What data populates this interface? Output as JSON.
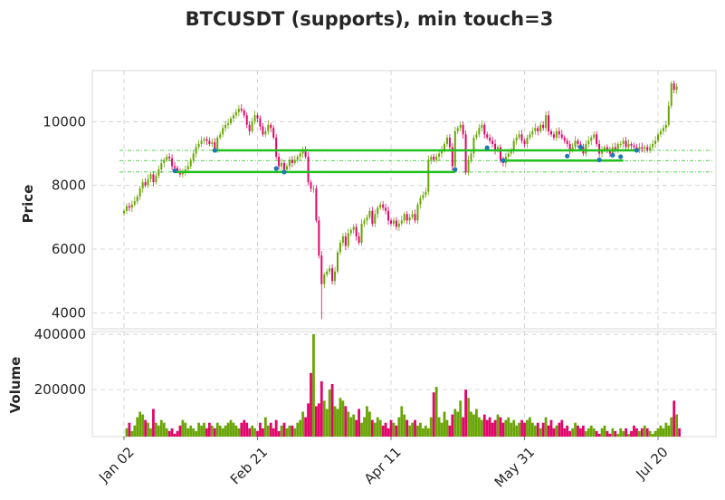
{
  "chart_data": {
    "type": "candlestick",
    "title": "BTCUSDT (supports), min touch=3",
    "price_panel": {
      "ylabel": "Price",
      "ylim": [
        3500,
        11600
      ],
      "yticks": [
        4000,
        6000,
        8000,
        10000
      ]
    },
    "volume_panel": {
      "ylabel": "Volume",
      "ylim": [
        30000,
        410000
      ],
      "yticks": [
        200000,
        400000
      ]
    },
    "x_axis": {
      "start_date": "2020-01-02",
      "end_date": "2020-07-25",
      "tick_labels": [
        "Jan 02",
        "Feb 21",
        "Apr 11",
        "May 31",
        "Jul 20"
      ],
      "tick_days": [
        0,
        50,
        100,
        150,
        200
      ]
    },
    "colors": {
      "up": "#6aa508",
      "down": "#e0066a",
      "support_line": "#22c01e",
      "guide_line": "#22c01e",
      "touch_point": "#1f77b4",
      "grid": "#cccccc",
      "frame": "#e5e5e5"
    },
    "support_levels": [
      {
        "level": 8420,
        "from_day": 19,
        "to_day": 124
      },
      {
        "level": 9100,
        "from_day": 34,
        "to_day": 192
      },
      {
        "level": 8780,
        "from_day": 142,
        "to_day": 187
      }
    ],
    "guide_levels": [
      8420,
      8780,
      9100
    ],
    "touch_points": [
      {
        "day": 19,
        "price": 8460
      },
      {
        "day": 34,
        "price": 9100
      },
      {
        "day": 57,
        "price": 8530
      },
      {
        "day": 60,
        "price": 8420
      },
      {
        "day": 124,
        "price": 8500
      },
      {
        "day": 136,
        "price": 9180
      },
      {
        "day": 142,
        "price": 8780
      },
      {
        "day": 166,
        "price": 8920
      },
      {
        "day": 171,
        "price": 9200
      },
      {
        "day": 178,
        "price": 8800
      },
      {
        "day": 183,
        "price": 8950
      },
      {
        "day": 186,
        "price": 8900
      },
      {
        "day": 192,
        "price": 9100
      }
    ],
    "closes": [
      7200,
      7350,
      7300,
      7400,
      7500,
      7650,
      7900,
      8100,
      8000,
      8200,
      8350,
      8100,
      8300,
      8500,
      8700,
      8800,
      8900,
      8850,
      8600,
      8550,
      8450,
      8350,
      8420,
      8500,
      8600,
      8800,
      9000,
      9200,
      9300,
      9400,
      9450,
      9400,
      9300,
      9350,
      9150,
      9500,
      9600,
      9800,
      9900,
      9950,
      10100,
      10200,
      10300,
      10400,
      10350,
      10200,
      9900,
      9700,
      10000,
      10200,
      10100,
      9850,
      9600,
      9700,
      9900,
      9800,
      9500,
      8900,
      8600,
      8700,
      8500,
      8600,
      8800,
      8700,
      8800,
      8900,
      9000,
      9100,
      8900,
      8100,
      7900,
      7900,
      6900,
      5800,
      4900,
      5200,
      5300,
      5400,
      5000,
      5300,
      5900,
      6200,
      6400,
      6100,
      6500,
      6600,
      6700,
      6400,
      6200,
      6800,
      6900,
      7000,
      7200,
      6800,
      7100,
      7300,
      7400,
      7300,
      7200,
      6900,
      6800,
      6900,
      6700,
      6800,
      6900,
      7100,
      6900,
      7000,
      7100,
      6900,
      7400,
      7600,
      7700,
      7800,
      8800,
      8900,
      8800,
      8900,
      9000,
      9100,
      9300,
      9500,
      9200,
      8600,
      9700,
      9800,
      9900,
      9600,
      8400,
      8800,
      9000,
      9500,
      9600,
      9800,
      9900,
      9600,
      9500,
      9400,
      9300,
      9100,
      9200,
      8800,
      8700,
      8900,
      9000,
      9100,
      9400,
      9500,
      9600,
      9400,
      9300,
      9500,
      9600,
      9700,
      9800,
      9700,
      9900,
      9800,
      10200,
      9700,
      9600,
      9500,
      9700,
      9600,
      9500,
      9400,
      9300,
      9100,
      9200,
      9400,
      9300,
      9200,
      9000,
      9300,
      9400,
      9500,
      9600,
      9300,
      9000,
      9100,
      9200,
      9100,
      9000,
      9200,
      9100,
      9300,
      9300,
      9400,
      9200,
      9300,
      9250,
      9200,
      9100,
      9200,
      9150,
      9200,
      9100,
      9200,
      9300,
      9400,
      9600,
      9700,
      9800,
      9900,
      10500,
      11200,
      11000,
      11100
    ],
    "volumes": [
      30000,
      60000,
      80000,
      50000,
      70000,
      100000,
      120000,
      110000,
      90000,
      80000,
      60000,
      130000,
      80000,
      70000,
      90000,
      80000,
      60000,
      50000,
      60000,
      40000,
      50000,
      70000,
      90000,
      80000,
      60000,
      70000,
      60000,
      50000,
      80000,
      70000,
      80000,
      60000,
      80000,
      70000,
      60000,
      80000,
      70000,
      60000,
      70000,
      80000,
      90000,
      80000,
      70000,
      60000,
      80000,
      90000,
      80000,
      60000,
      70000,
      60000,
      50000,
      80000,
      60000,
      100000,
      70000,
      80000,
      60000,
      90000,
      50000,
      70000,
      80000,
      60000,
      70000,
      70000,
      60000,
      80000,
      90000,
      120000,
      100000,
      150000,
      260000,
      400000,
      140000,
      150000,
      230000,
      160000,
      130000,
      200000,
      220000,
      140000,
      130000,
      170000,
      160000,
      140000,
      120000,
      100000,
      110000,
      90000,
      130000,
      80000,
      100000,
      140000,
      120000,
      90000,
      80000,
      100000,
      90000,
      70000,
      80000,
      60000,
      90000,
      80000,
      70000,
      100000,
      140000,
      110000,
      90000,
      70000,
      80000,
      90000,
      70000,
      80000,
      60000,
      70000,
      60000,
      100000,
      190000,
      210000,
      100000,
      80000,
      120000,
      90000,
      70000,
      110000,
      130000,
      120000,
      160000,
      100000,
      200000,
      170000,
      120000,
      110000,
      130000,
      100000,
      90000,
      110000,
      90000,
      100000,
      80000,
      90000,
      110000,
      100000,
      80000,
      90000,
      100000,
      80000,
      90000,
      70000,
      80000,
      90000,
      80000,
      90000,
      100000,
      80000,
      70000,
      80000,
      60000,
      80000,
      100000,
      70000,
      90000,
      60000,
      70000,
      80000,
      90000,
      60000,
      70000,
      50000,
      60000,
      80000,
      70000,
      60000,
      70000,
      50000,
      60000,
      70000,
      60000,
      50000,
      40000,
      60000,
      70000,
      50000,
      40000,
      60000,
      50000,
      40000,
      60000,
      50000,
      60000,
      40000,
      50000,
      70000,
      60000,
      50000,
      60000,
      70000,
      60000,
      50000,
      40000,
      50000,
      60000,
      70000,
      60000,
      80000,
      70000,
      100000,
      160000,
      110000,
      60000
    ]
  }
}
